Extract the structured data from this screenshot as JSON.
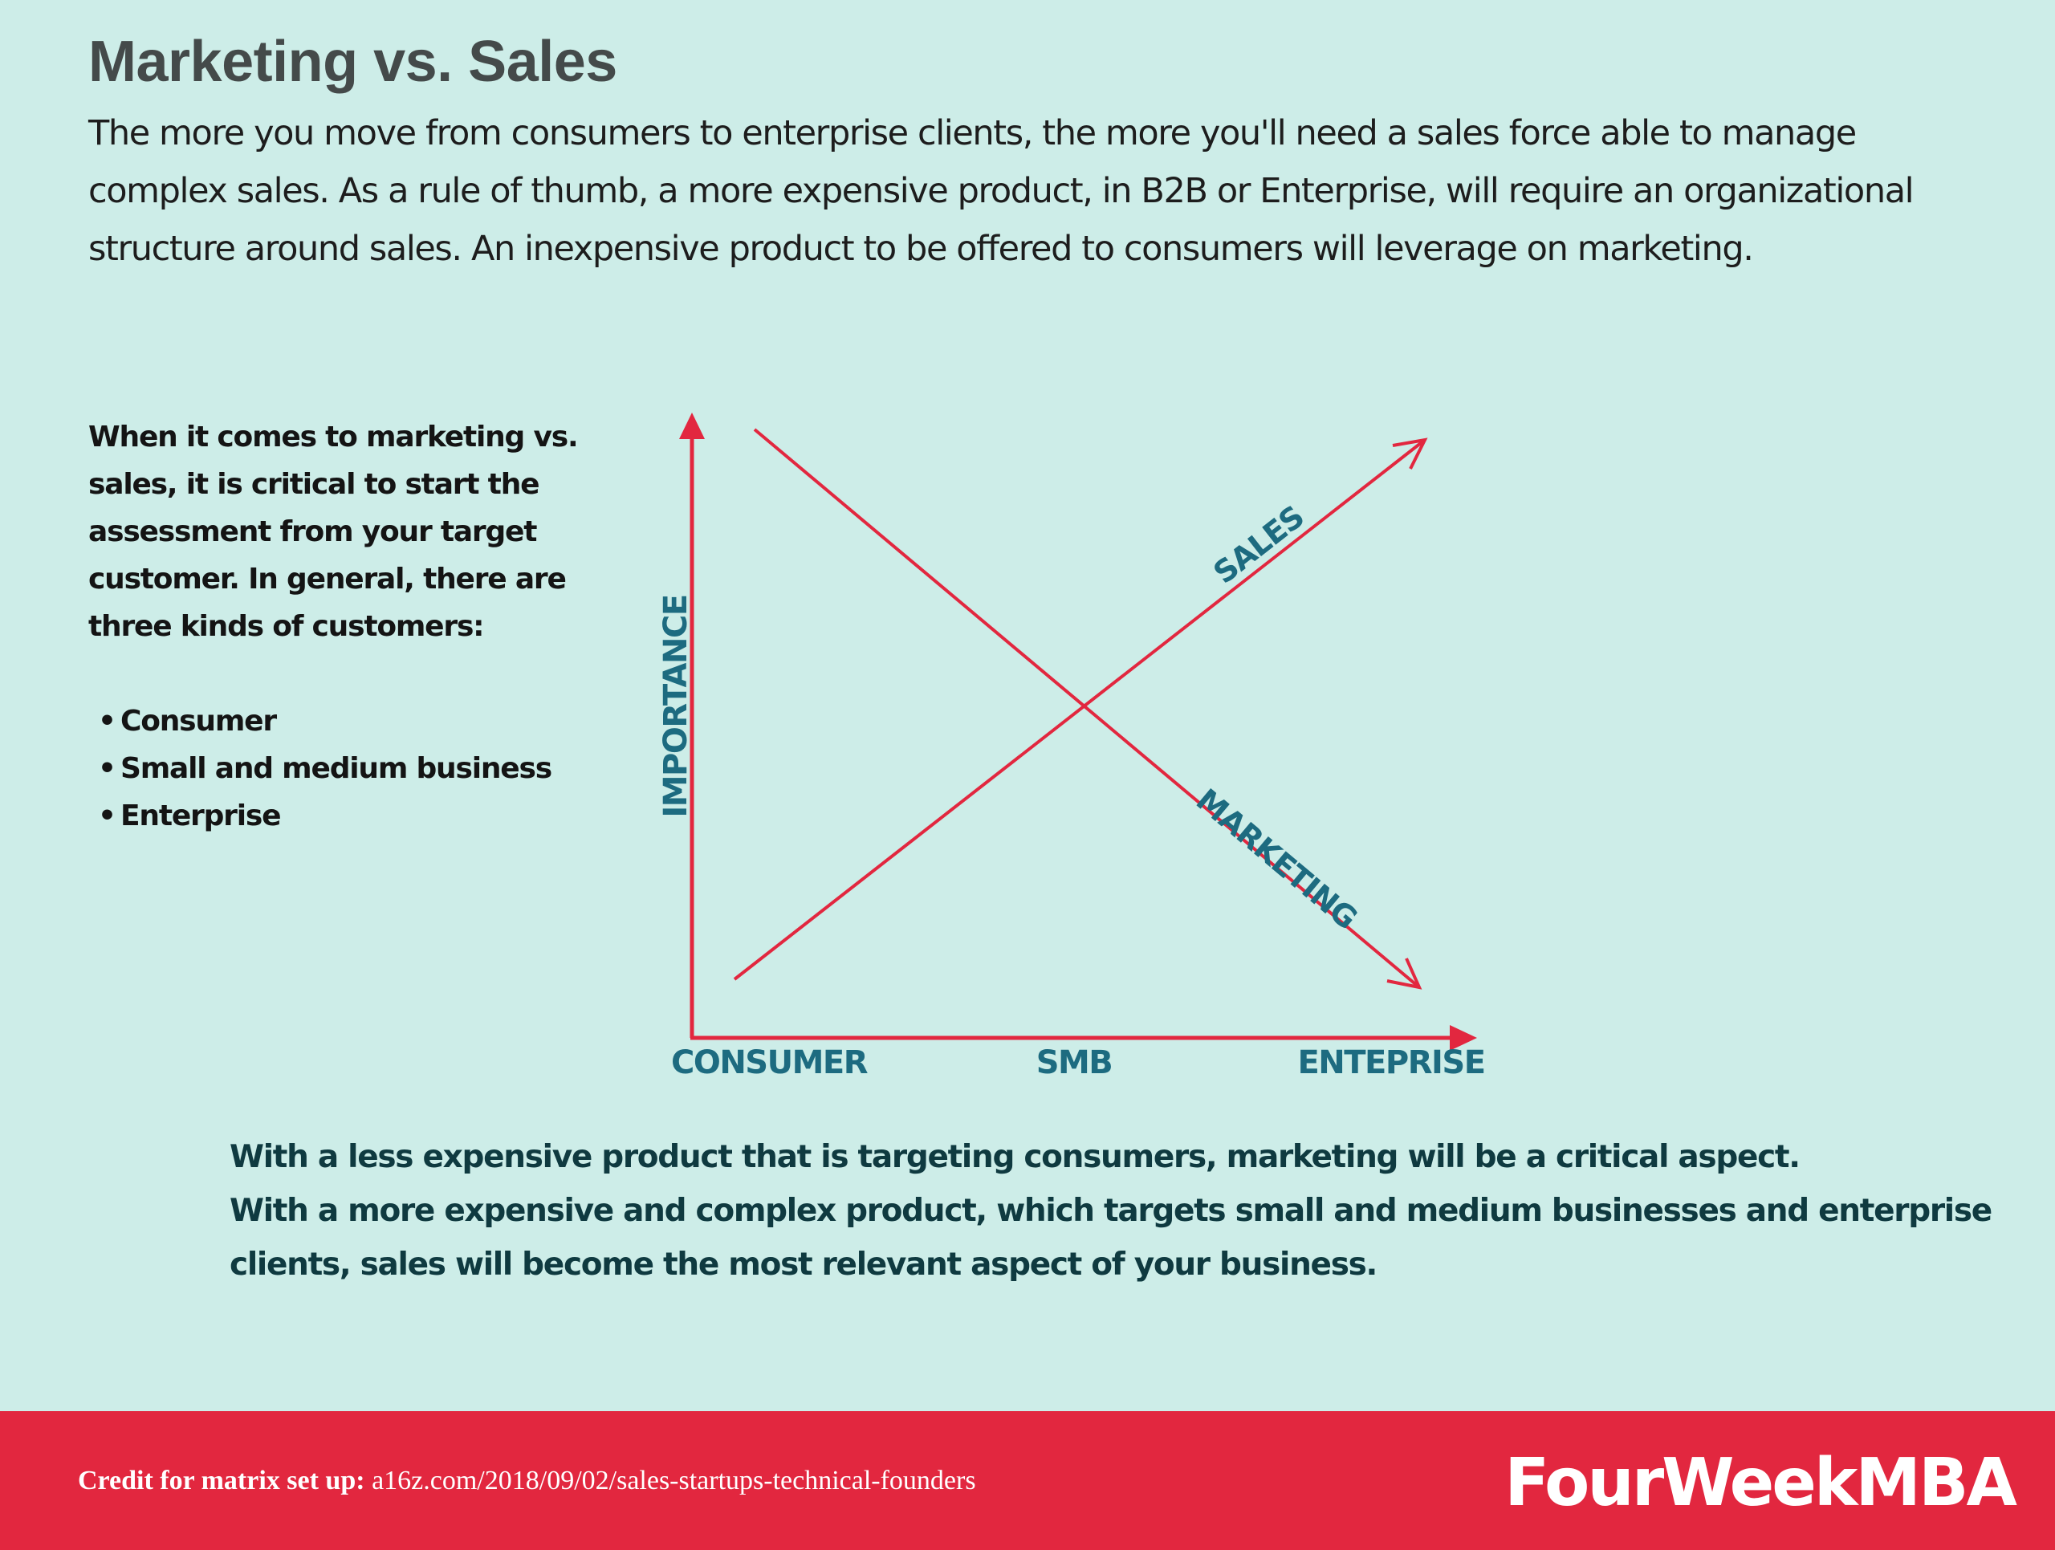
{
  "header": {
    "title": "Marketing vs. Sales",
    "intro": "The more you move from consumers to enterprise clients, the more you'll need a sales force able to manage complex sales.  As a rule of thumb, a more expensive product, in B2B or Enterprise, will require an organizational structure around sales. An inexpensive product to be offered to consumers will leverage on marketing."
  },
  "sidebar": {
    "text": "When it comes to marketing vs. sales, it is critical to start the assessment from your target customer. In general, there are three kinds of customers:",
    "items": [
      "Consumer",
      "Small and medium business",
      "Enterprise"
    ]
  },
  "diagram": {
    "y_axis_label": "IMPORTANCE",
    "x_axis_labels": [
      "CONSUMER",
      "SMB",
      "ENTEPRISE"
    ],
    "sales_label": "SALES",
    "marketing_label": "MARKETING",
    "colors": {
      "axis": "#e2273f",
      "lines": "#e2273f",
      "labels": "#1d6b80"
    }
  },
  "conclusion": {
    "line1": "With a less expensive product that is targeting consumers, marketing will be a critical aspect.",
    "line2": "With a more expensive and complex product, which targets small and medium businesses and enterprise clients, sales will become the most relevant aspect of your business."
  },
  "footer": {
    "credit_label": "Credit for matrix set up:",
    "credit_url": "a16z.com/2018/09/02/sales-startups-technical-founders",
    "brand": "FourWeekMBA"
  }
}
